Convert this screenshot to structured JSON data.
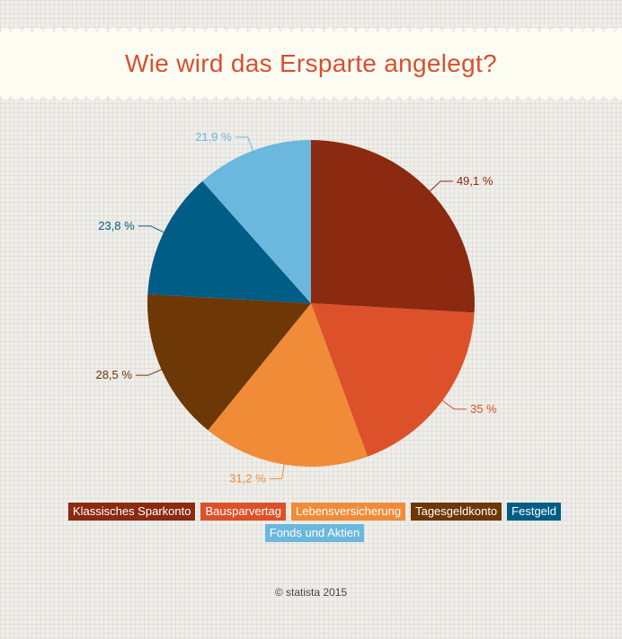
{
  "title": "Wie wird das Ersparte angelegt?",
  "copyright": "© statista 2015",
  "chart_data": {
    "type": "pie",
    "title": "Wie wird das Ersparte angelegt?",
    "slices": [
      {
        "name": "Klassisches Sparkonto",
        "value": 49.1,
        "label": "49,1 %",
        "color": "#8b2a10"
      },
      {
        "name": "Bausparvertag",
        "value": 35,
        "label": "35 %",
        "color": "#dc512a"
      },
      {
        "name": "Lebensversicherung",
        "value": 31.2,
        "label": "31,2 %",
        "color": "#f08b38"
      },
      {
        "name": "Tagesgeldkonto",
        "value": 28.5,
        "label": "28,5 %",
        "color": "#6e3706"
      },
      {
        "name": "Festgeld",
        "value": 23.8,
        "label": "23,8 %",
        "color": "#005d86"
      },
      {
        "name": "Fonds und Aktien",
        "value": 21.9,
        "label": "21,9 %",
        "color": "#6bb7dd"
      }
    ],
    "legend": "bottom"
  }
}
